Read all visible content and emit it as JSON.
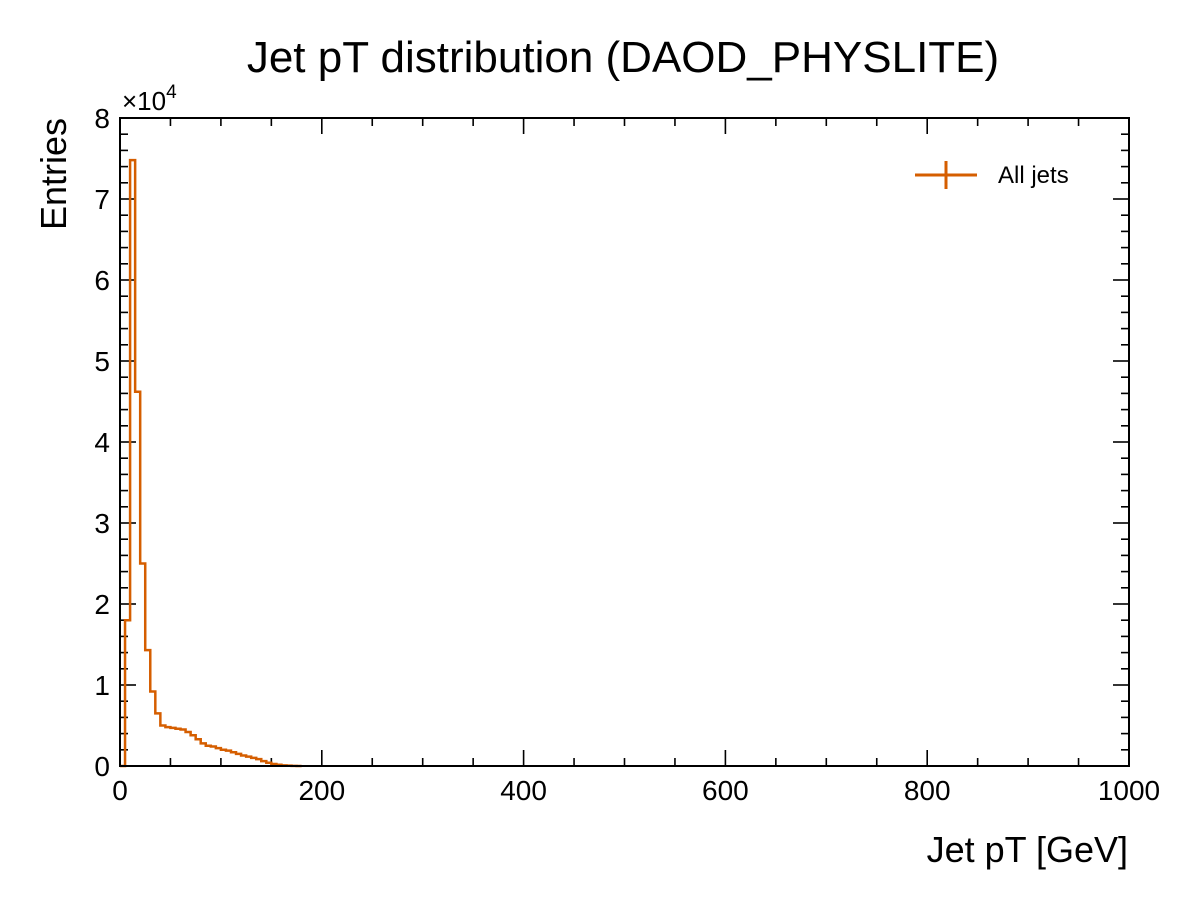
{
  "chart_data": {
    "type": "histogram",
    "title": "Jet pT distribution (DAOD_PHYSLITE)",
    "xlabel": "Jet pT [GeV]",
    "ylabel": "Entries",
    "xlim": [
      0,
      1000
    ],
    "ylim": [
      0,
      80000
    ],
    "x_ticks": [
      "0",
      "200",
      "400",
      "600",
      "800",
      "1000"
    ],
    "y_ticks": [
      "0",
      "1",
      "2",
      "3",
      "4",
      "5",
      "6",
      "7",
      "8"
    ],
    "y_multiplier": {
      "base": "×10",
      "exponent": "4"
    },
    "grid": false,
    "legend_position": "top-right",
    "color": "#d55e00",
    "bin_edges": [
      0,
      5,
      10,
      15,
      20,
      25,
      30,
      35,
      40,
      45,
      50,
      55,
      60,
      65,
      70,
      75,
      80,
      85,
      90,
      95,
      100,
      105,
      110,
      115,
      120,
      125,
      130,
      135,
      140,
      145,
      150,
      155,
      160,
      165,
      170,
      175,
      180
    ],
    "series": [
      {
        "name": "All jets",
        "counts": [
          0,
          18000,
          74800,
          46200,
          25000,
          14300,
          9200,
          6500,
          5000,
          4800,
          4700,
          4600,
          4500,
          4200,
          3800,
          3300,
          2800,
          2500,
          2400,
          2200,
          2000,
          1900,
          1700,
          1500,
          1300,
          1150,
          1000,
          850,
          600,
          400,
          250,
          150,
          80,
          40,
          20,
          0
        ]
      }
    ]
  }
}
